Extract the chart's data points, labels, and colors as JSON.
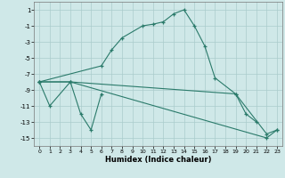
{
  "xlabel": "Humidex (Indice chaleur)",
  "background_color": "#cfe8e8",
  "grid_color": "#aacccc",
  "line_color": "#2a7a6a",
  "series1_x": [
    0,
    6,
    7,
    8,
    10,
    11,
    12,
    13,
    14,
    15,
    16,
    17,
    19,
    22,
    23
  ],
  "series1_y": [
    -8,
    -6,
    -4,
    -2.5,
    -1,
    -0.8,
    -0.5,
    0.5,
    1,
    -1,
    -3.5,
    -7.5,
    -9.5,
    -14.5,
    -14
  ],
  "series2_x": [
    0,
    1,
    3,
    4,
    5,
    6
  ],
  "series2_y": [
    -8,
    -11,
    -8,
    -12,
    -14,
    -9.5
  ],
  "series3_x": [
    0,
    3,
    19,
    20,
    21
  ],
  "series3_y": [
    -8,
    -8,
    -9.5,
    -12,
    -13
  ],
  "series4_x": [
    0,
    3,
    22,
    23
  ],
  "series4_y": [
    -8,
    -8,
    -15,
    -14
  ],
  "ylim": [
    -16,
    2
  ],
  "xlim": [
    -0.5,
    23.5
  ],
  "yticks": [
    1,
    -1,
    -3,
    -5,
    -7,
    -9,
    -11,
    -13,
    -15
  ],
  "xticks": [
    0,
    1,
    2,
    3,
    4,
    5,
    6,
    7,
    8,
    9,
    10,
    11,
    12,
    13,
    14,
    15,
    16,
    17,
    18,
    19,
    20,
    21,
    22,
    23
  ]
}
